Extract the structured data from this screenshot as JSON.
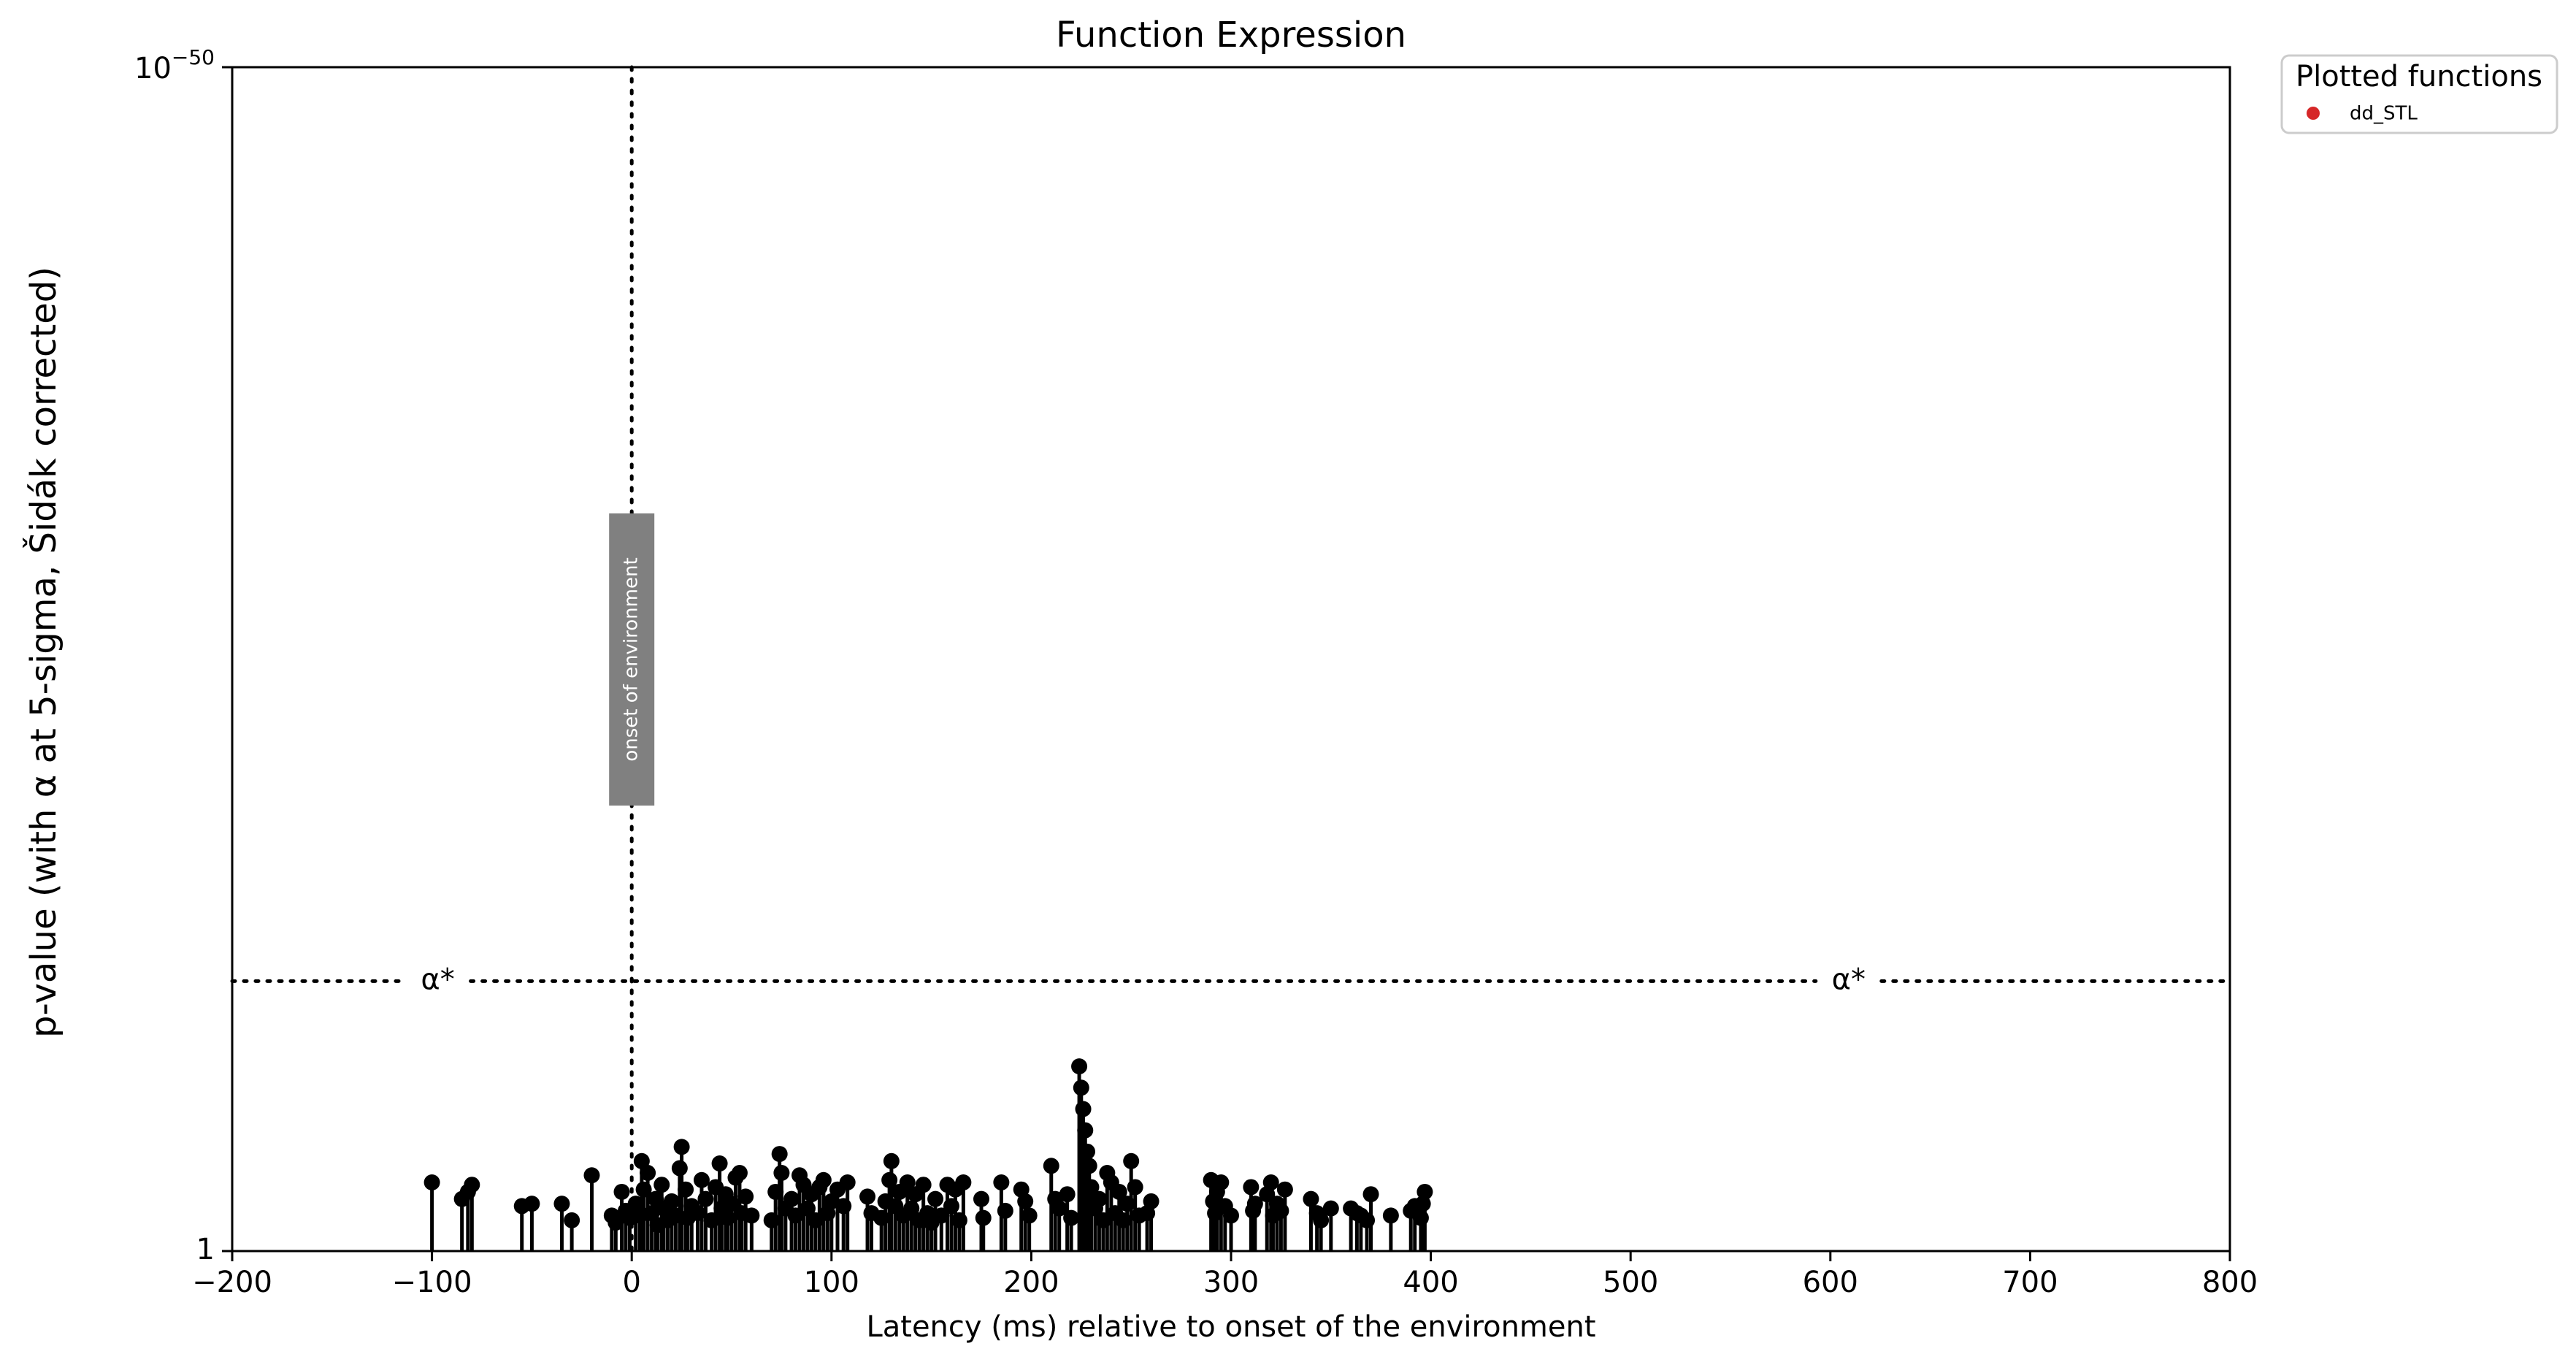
{
  "chart_data": {
    "type": "scatter",
    "style": "stem",
    "title": "Function Expression",
    "xlabel": "Latency (ms) relative to onset of the environment",
    "ylabel": "p-value (with α at 5-sigma, Šidák corrected)",
    "xlim": [
      -200,
      800
    ],
    "xticks": [
      -200,
      -100,
      0,
      100,
      200,
      300,
      400,
      500,
      600,
      700,
      800
    ],
    "xtick_labels": [
      "−200",
      "−100",
      "0",
      "100",
      "200",
      "300",
      "400",
      "500",
      "600",
      "700",
      "800"
    ],
    "yscale": "log",
    "ylim_exponent": [
      0,
      -50
    ],
    "ytick_labels": [
      {
        "base": "1",
        "exponent": ""
      },
      {
        "base": "10",
        "exponent": "−50"
      }
    ],
    "grid": false,
    "legend": {
      "title": "Plotted functions",
      "placement": "outside-top-right",
      "entries": [
        {
          "label": "dd_STL",
          "color": "#d62728"
        }
      ]
    },
    "onset_line": {
      "x": 0,
      "label": "onset of environment"
    },
    "alpha_line": {
      "y_exponent": -11.4,
      "label": "α*"
    },
    "marker_color": "#000000",
    "series": [
      {
        "name": "dd_STL",
        "points": [
          [
            -100,
            -2.9
          ],
          [
            -85,
            -2.2
          ],
          [
            -82,
            -2.5
          ],
          [
            -80,
            -2.8
          ],
          [
            -55,
            -1.9
          ],
          [
            -50,
            -2.0
          ],
          [
            -35,
            -2.0
          ],
          [
            -30,
            -1.3
          ],
          [
            -20,
            -3.2
          ],
          [
            -10,
            -1.5
          ],
          [
            -8,
            -1.2
          ],
          [
            -5,
            -2.5
          ],
          [
            -3,
            -1.7
          ],
          [
            -1,
            -1.4
          ],
          [
            2,
            -2.0
          ],
          [
            4,
            -1.5
          ],
          [
            5,
            -3.8
          ],
          [
            6,
            -2.6
          ],
          [
            8,
            -3.3
          ],
          [
            10,
            -1.6
          ],
          [
            12,
            -2.2
          ],
          [
            13,
            -1.1
          ],
          [
            15,
            -2.8
          ],
          [
            16,
            -1.8
          ],
          [
            18,
            -1.3
          ],
          [
            20,
            -2.1
          ],
          [
            22,
            -1.5
          ],
          [
            24,
            -3.5
          ],
          [
            25,
            -4.4
          ],
          [
            27,
            -2.6
          ],
          [
            28,
            -1.4
          ],
          [
            30,
            -1.9
          ],
          [
            33,
            -1.6
          ],
          [
            35,
            -3.0
          ],
          [
            37,
            -2.2
          ],
          [
            40,
            -1.3
          ],
          [
            42,
            -2.7
          ],
          [
            44,
            -3.7
          ],
          [
            45,
            -1.8
          ],
          [
            47,
            -2.4
          ],
          [
            48,
            -1.4
          ],
          [
            50,
            -2.0
          ],
          [
            52,
            -3.1
          ],
          [
            54,
            -3.3
          ],
          [
            55,
            -1.6
          ],
          [
            57,
            -2.3
          ],
          [
            60,
            -1.5
          ],
          [
            70,
            -1.3
          ],
          [
            72,
            -2.5
          ],
          [
            74,
            -4.1
          ],
          [
            75,
            -3.3
          ],
          [
            77,
            -1.8
          ],
          [
            80,
            -2.2
          ],
          [
            82,
            -1.5
          ],
          [
            84,
            -3.2
          ],
          [
            86,
            -2.8
          ],
          [
            88,
            -1.8
          ],
          [
            90,
            -2.4
          ],
          [
            92,
            -1.3
          ],
          [
            94,
            -2.7
          ],
          [
            96,
            -3.0
          ],
          [
            98,
            -1.6
          ],
          [
            100,
            -2.1
          ],
          [
            103,
            -2.6
          ],
          [
            106,
            -1.9
          ],
          [
            108,
            -2.9
          ],
          [
            118,
            -2.3
          ],
          [
            120,
            -1.6
          ],
          [
            125,
            -1.4
          ],
          [
            127,
            -2.1
          ],
          [
            129,
            -3.0
          ],
          [
            130,
            -3.8
          ],
          [
            132,
            -1.9
          ],
          [
            134,
            -2.5
          ],
          [
            136,
            -1.5
          ],
          [
            138,
            -2.9
          ],
          [
            140,
            -1.8
          ],
          [
            142,
            -2.4
          ],
          [
            144,
            -1.3
          ],
          [
            146,
            -2.8
          ],
          [
            148,
            -1.6
          ],
          [
            150,
            -1.2
          ],
          [
            152,
            -2.2
          ],
          [
            155,
            -1.5
          ],
          [
            158,
            -2.8
          ],
          [
            160,
            -1.9
          ],
          [
            162,
            -2.6
          ],
          [
            164,
            -1.3
          ],
          [
            166,
            -2.9
          ],
          [
            175,
            -2.2
          ],
          [
            176,
            -1.4
          ],
          [
            185,
            -2.9
          ],
          [
            187,
            -1.7
          ],
          [
            195,
            -2.6
          ],
          [
            197,
            -2.1
          ],
          [
            199,
            -1.5
          ],
          [
            210,
            -3.6
          ],
          [
            212,
            -2.2
          ],
          [
            214,
            -1.8
          ],
          [
            218,
            -2.4
          ],
          [
            220,
            -1.4
          ],
          [
            224,
            -7.8
          ],
          [
            225,
            -6.9
          ],
          [
            226,
            -6.0
          ],
          [
            227,
            -5.1
          ],
          [
            228,
            -4.2
          ],
          [
            229,
            -3.6
          ],
          [
            230,
            -2.7
          ],
          [
            232,
            -1.8
          ],
          [
            234,
            -2.2
          ],
          [
            236,
            -1.3
          ],
          [
            238,
            -3.3
          ],
          [
            240,
            -2.9
          ],
          [
            242,
            -1.6
          ],
          [
            244,
            -2.5
          ],
          [
            246,
            -1.3
          ],
          [
            248,
            -2.0
          ],
          [
            250,
            -3.8
          ],
          [
            252,
            -2.7
          ],
          [
            254,
            -1.5
          ],
          [
            258,
            -1.6
          ],
          [
            260,
            -2.1
          ],
          [
            290,
            -3.0
          ],
          [
            291,
            -2.1
          ],
          [
            292,
            -1.6
          ],
          [
            293,
            -2.5
          ],
          [
            295,
            -2.9
          ],
          [
            297,
            -1.9
          ],
          [
            300,
            -1.5
          ],
          [
            310,
            -2.7
          ],
          [
            311,
            -1.7
          ],
          [
            312,
            -2.0
          ],
          [
            318,
            -2.4
          ],
          [
            320,
            -2.9
          ],
          [
            321,
            -1.5
          ],
          [
            323,
            -2.0
          ],
          [
            325,
            -1.7
          ],
          [
            327,
            -2.6
          ],
          [
            340,
            -2.2
          ],
          [
            343,
            -1.6
          ],
          [
            345,
            -1.3
          ],
          [
            350,
            -1.8
          ],
          [
            360,
            -1.8
          ],
          [
            363,
            -1.6
          ],
          [
            365,
            -1.5
          ],
          [
            368,
            -1.3
          ],
          [
            370,
            -2.4
          ],
          [
            380,
            -1.5
          ],
          [
            390,
            -1.7
          ],
          [
            392,
            -1.9
          ],
          [
            395,
            -1.4
          ],
          [
            396,
            -2.0
          ],
          [
            397,
            -2.5
          ]
        ]
      }
    ]
  }
}
